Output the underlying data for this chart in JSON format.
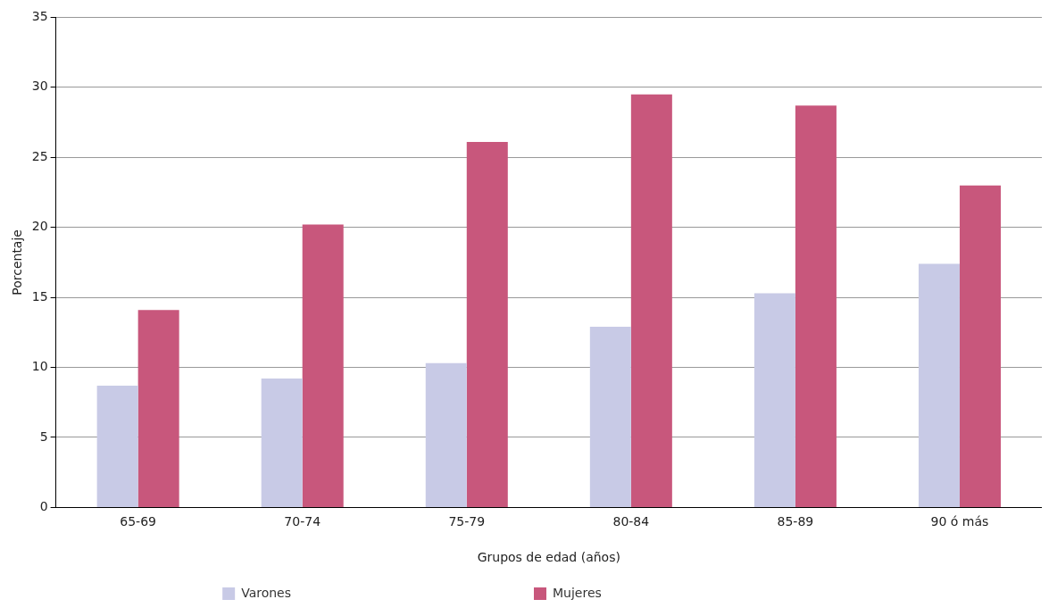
{
  "chart_data": {
    "type": "bar",
    "xlabel": "Grupos de edad (años)",
    "ylabel": "Porcentaje",
    "categories": [
      "65-69",
      "70-74",
      "75-79",
      "80-84",
      "85-89",
      "90 ó más"
    ],
    "series": [
      {
        "name": "Varones",
        "color": "#c8cae6",
        "values": [
          8.7,
          9.2,
          10.3,
          12.9,
          15.3,
          17.4
        ]
      },
      {
        "name": "Mujeres",
        "color": "#c8577c",
        "values": [
          14.1,
          20.2,
          26.1,
          29.5,
          28.7,
          23.0
        ]
      }
    ],
    "ylim": [
      0,
      35
    ],
    "yticks": [
      0,
      5,
      10,
      15,
      20,
      25,
      30,
      35
    ],
    "grid": "y",
    "legend": "bottom"
  }
}
